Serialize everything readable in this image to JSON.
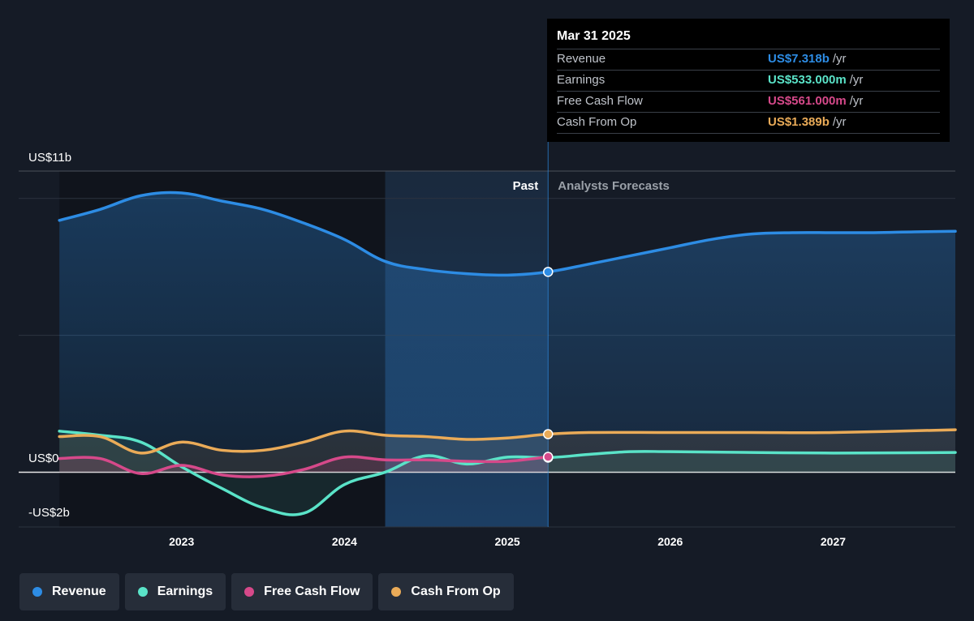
{
  "tooltip": {
    "date": "Mar 31 2025",
    "rows": [
      {
        "label": "Revenue",
        "value": "US$7.318b",
        "unit": "/yr",
        "color": "#2d8ce4"
      },
      {
        "label": "Earnings",
        "value": "US$533.000m",
        "unit": "/yr",
        "color": "#5ae3c8"
      },
      {
        "label": "Free Cash Flow",
        "value": "US$561.000m",
        "unit": "/yr",
        "color": "#d6498a"
      },
      {
        "label": "Cash From Op",
        "value": "US$1.389b",
        "unit": "/yr",
        "color": "#eaab58"
      }
    ]
  },
  "labels": {
    "past": "Past",
    "forecast": "Analysts Forecasts"
  },
  "legend": [
    {
      "label": "Revenue",
      "color": "#2d8ce4"
    },
    {
      "label": "Earnings",
      "color": "#5ae3c8"
    },
    {
      "label": "Free Cash Flow",
      "color": "#d6498a"
    },
    {
      "label": "Cash From Op",
      "color": "#eaab58"
    }
  ],
  "chart_data": {
    "type": "line",
    "y_unit": "US$ billions",
    "ylim": [
      -2,
      11
    ],
    "y_tick_labels": [
      {
        "value": 11,
        "label": "US$11b"
      },
      {
        "value": 0,
        "label": "US$0"
      },
      {
        "value": -2,
        "label": "-US$2b"
      }
    ],
    "x_tick_labels": [
      "2023",
      "2024",
      "2025",
      "2026",
      "2027"
    ],
    "x_tick_values": [
      2023.0,
      2024.0,
      2025.0,
      2026.0,
      2027.0
    ],
    "xlim": [
      2022.0,
      2027.75
    ],
    "past_region_start": 2024.25,
    "present_marker": 2025.25,
    "grid": true,
    "legend_position": "bottom-left",
    "series": [
      {
        "name": "Revenue",
        "color": "#2d8ce4",
        "points": [
          [
            2022.25,
            9.2
          ],
          [
            2022.5,
            9.6
          ],
          [
            2022.75,
            10.1
          ],
          [
            2023.0,
            10.2
          ],
          [
            2023.25,
            9.9
          ],
          [
            2023.5,
            9.6
          ],
          [
            2023.75,
            9.1
          ],
          [
            2024.0,
            8.5
          ],
          [
            2024.25,
            7.7
          ],
          [
            2024.5,
            7.4
          ],
          [
            2024.75,
            7.25
          ],
          [
            2025.0,
            7.2
          ],
          [
            2025.25,
            7.318
          ],
          [
            2025.5,
            7.6
          ],
          [
            2025.75,
            7.9
          ],
          [
            2026.0,
            8.2
          ],
          [
            2026.25,
            8.5
          ],
          [
            2026.5,
            8.7
          ],
          [
            2026.75,
            8.75
          ],
          [
            2027.0,
            8.75
          ],
          [
            2027.25,
            8.75
          ],
          [
            2027.5,
            8.78
          ],
          [
            2027.75,
            8.8
          ]
        ]
      },
      {
        "name": "Earnings",
        "color": "#5ae3c8",
        "points": [
          [
            2022.25,
            1.5
          ],
          [
            2022.5,
            1.35
          ],
          [
            2022.75,
            1.1
          ],
          [
            2023.0,
            0.2
          ],
          [
            2023.25,
            -0.6
          ],
          [
            2023.5,
            -1.3
          ],
          [
            2023.75,
            -1.5
          ],
          [
            2024.0,
            -0.45
          ],
          [
            2024.25,
            0.0
          ],
          [
            2024.5,
            0.6
          ],
          [
            2024.75,
            0.3
          ],
          [
            2025.0,
            0.55
          ],
          [
            2025.25,
            0.533
          ],
          [
            2025.5,
            0.65
          ],
          [
            2025.75,
            0.75
          ],
          [
            2026.0,
            0.75
          ],
          [
            2026.5,
            0.72
          ],
          [
            2027.0,
            0.7
          ],
          [
            2027.75,
            0.72
          ]
        ]
      },
      {
        "name": "Free Cash Flow",
        "color": "#d6498a",
        "points": [
          [
            2022.25,
            0.5
          ],
          [
            2022.5,
            0.5
          ],
          [
            2022.75,
            -0.05
          ],
          [
            2023.0,
            0.25
          ],
          [
            2023.25,
            -0.1
          ],
          [
            2023.5,
            -0.15
          ],
          [
            2023.75,
            0.1
          ],
          [
            2024.0,
            0.55
          ],
          [
            2024.25,
            0.45
          ],
          [
            2024.5,
            0.45
          ],
          [
            2024.75,
            0.4
          ],
          [
            2025.0,
            0.4
          ],
          [
            2025.25,
            0.561
          ]
        ]
      },
      {
        "name": "Cash From Op",
        "color": "#eaab58",
        "points": [
          [
            2022.25,
            1.3
          ],
          [
            2022.5,
            1.3
          ],
          [
            2022.75,
            0.7
          ],
          [
            2023.0,
            1.1
          ],
          [
            2023.25,
            0.8
          ],
          [
            2023.5,
            0.8
          ],
          [
            2023.75,
            1.1
          ],
          [
            2024.0,
            1.5
          ],
          [
            2024.25,
            1.35
          ],
          [
            2024.5,
            1.3
          ],
          [
            2024.75,
            1.2
          ],
          [
            2025.0,
            1.25
          ],
          [
            2025.25,
            1.389
          ],
          [
            2025.5,
            1.45
          ],
          [
            2026.0,
            1.45
          ],
          [
            2026.5,
            1.45
          ],
          [
            2027.0,
            1.45
          ],
          [
            2027.75,
            1.55
          ]
        ]
      }
    ]
  }
}
